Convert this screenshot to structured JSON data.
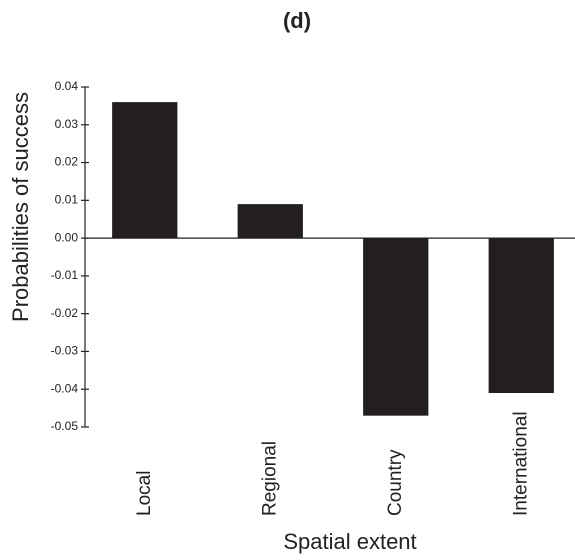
{
  "chart_data": {
    "type": "bar",
    "title": "(d)",
    "x_label": "Spatial extent",
    "y_label": "Probabilities of success",
    "categories": [
      "Local",
      "Regional",
      "Country",
      "International"
    ],
    "values": [
      0.036,
      0.009,
      -0.047,
      -0.041
    ],
    "color": "#231f20",
    "ylim": [
      -0.05,
      0.04
    ],
    "yticks": [
      -0.05,
      -0.04,
      -0.03,
      -0.02,
      -0.01,
      {
        "value": 0,
        "label": "0.00"
      },
      0.01,
      0.02,
      0.03,
      0.04
    ],
    "grid": false
  }
}
